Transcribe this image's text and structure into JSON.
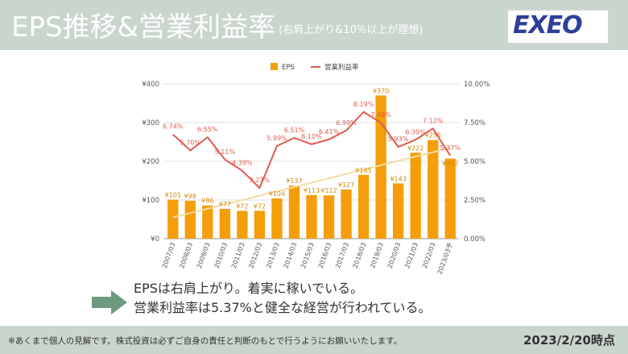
{
  "header": {
    "title": "EPS推移&営業利益率",
    "subtitle": "(右肩上がり&10%以上が理想)",
    "logo_text": "EXEO",
    "bg_color": "#c9d6cd"
  },
  "chart_data": {
    "type": "bar",
    "categories": [
      "2007/03",
      "2008/03",
      "2009/03",
      "2010/03",
      "2011/03",
      "2012/03",
      "2013/03",
      "2014/03",
      "2015/03",
      "2016/03",
      "2017/03",
      "2018/03",
      "2019/03",
      "2020/03",
      "2021/03",
      "2022/03",
      "2023/03予"
    ],
    "series": [
      {
        "name": "EPS",
        "type": "bar",
        "axis": "left",
        "color": "#f59e0b",
        "values": [
          101,
          98,
          86,
          77,
          72,
          72,
          104,
          137,
          113,
          112,
          127,
          165,
          370,
          143,
          222,
          255,
          207
        ],
        "labels": [
          "¥101",
          "¥98",
          "¥86",
          "¥77",
          "¥72",
          "¥72",
          "¥104",
          "¥137",
          "¥113",
          "¥112",
          "¥127",
          "¥165",
          "¥370",
          "¥143",
          "¥222",
          "¥255",
          "¥207"
        ]
      },
      {
        "name": "営業利益率",
        "type": "line",
        "axis": "right",
        "color": "#e05a4f",
        "values": [
          6.74,
          5.7,
          6.55,
          5.11,
          4.39,
          3.27,
          5.99,
          6.51,
          6.1,
          6.41,
          6.99,
          8.19,
          7.49,
          5.93,
          6.39,
          7.12,
          5.37
        ],
        "labels": [
          "6.74%",
          "5.70%",
          "6.55%",
          "5.11%",
          "4.39%",
          "3.27%",
          "5.99%",
          "6.51%",
          "6.10%",
          "6.41%",
          "6.99%",
          "8.19%",
          "7.49%",
          "5.93%",
          "6.39%",
          "7.12%",
          "5.37%"
        ]
      }
    ],
    "trendline": {
      "series": "EPS",
      "color": "#f3dca0"
    },
    "y_left": {
      "min": 0,
      "max": 400,
      "ticks": [
        "¥0",
        "¥100",
        "¥200",
        "¥300",
        "¥400"
      ]
    },
    "y_right": {
      "min": 0,
      "max": 10,
      "ticks": [
        "0.00%",
        "2.50%",
        "5.00%",
        "7.50%",
        "10.00%"
      ]
    },
    "legend_position": "top",
    "grid": true
  },
  "comment": {
    "line1": "EPSは右肩上がり。着実に稼いでいる。",
    "line2": "営業利益率は5.37%と健全な経営が行われている。",
    "arrow_icon": "right-arrow-icon",
    "arrow_color": "#6f9a7f"
  },
  "footer": {
    "disclaimer": "※あくまで個人の見解です。株式投資は必ずご自身の責任と判断のもとで行うようにお願いいたします。",
    "as_of": "2023/2/20時点"
  }
}
